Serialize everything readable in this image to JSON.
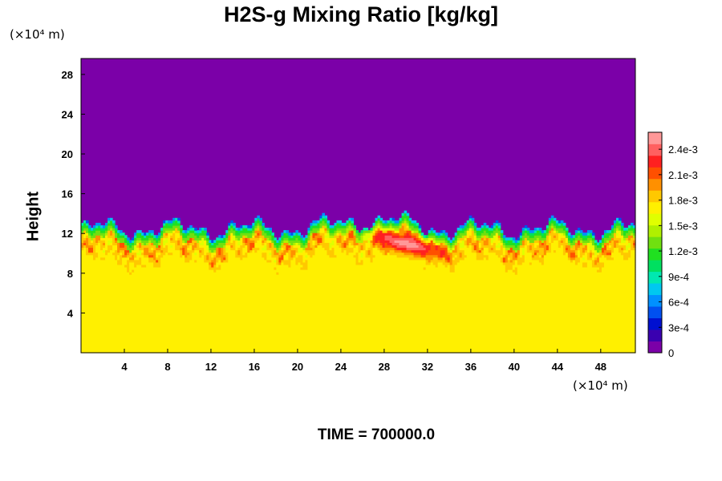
{
  "chart_data": {
    "type": "heatmap",
    "title": "H2S-g Mixing Ratio [kg/kg]",
    "ylabel": "Height",
    "y_unit": "(×10⁴ m)",
    "x_unit": "(×10⁴ m)",
    "footer": "TIME = 700000.0",
    "xlim": [
      0,
      51.2
    ],
    "ylim": [
      0,
      29.6
    ],
    "x_ticks": [
      4,
      8,
      12,
      16,
      20,
      24,
      28,
      32,
      36,
      40,
      44,
      48
    ],
    "y_ticks": [
      4,
      8,
      12,
      16,
      20,
      24,
      28
    ],
    "colorbar": {
      "min": 0,
      "max": 0.0026,
      "tick_values": [
        0,
        0.0003,
        0.0006,
        0.0009,
        0.0012,
        0.0015,
        0.0018,
        0.0021,
        0.0024
      ],
      "tick_labels": [
        "0",
        "3e-4",
        "6e-4",
        "9e-4",
        "1.2e-3",
        "1.5e-3",
        "1.8e-3",
        "2.1e-3",
        "2.4e-3"
      ],
      "colors": [
        "#7b00a8",
        "#3a00b0",
        "#0010d0",
        "#0050f0",
        "#0090ff",
        "#00c8f0",
        "#00e8b0",
        "#00e060",
        "#20e020",
        "#70e010",
        "#b0f000",
        "#e0ff00",
        "#fff000",
        "#ffc800",
        "#ff9000",
        "#ff5000",
        "#ff2020",
        "#ff6060",
        "#ff9898"
      ]
    },
    "regions": {
      "upper_value": 0,
      "lower_value": 0.00172,
      "interface_height": 12.5,
      "max_region": {
        "x_range": [
          26,
          34
        ],
        "y_range": [
          9.5,
          12.5
        ],
        "value": 0.0025
      }
    }
  }
}
